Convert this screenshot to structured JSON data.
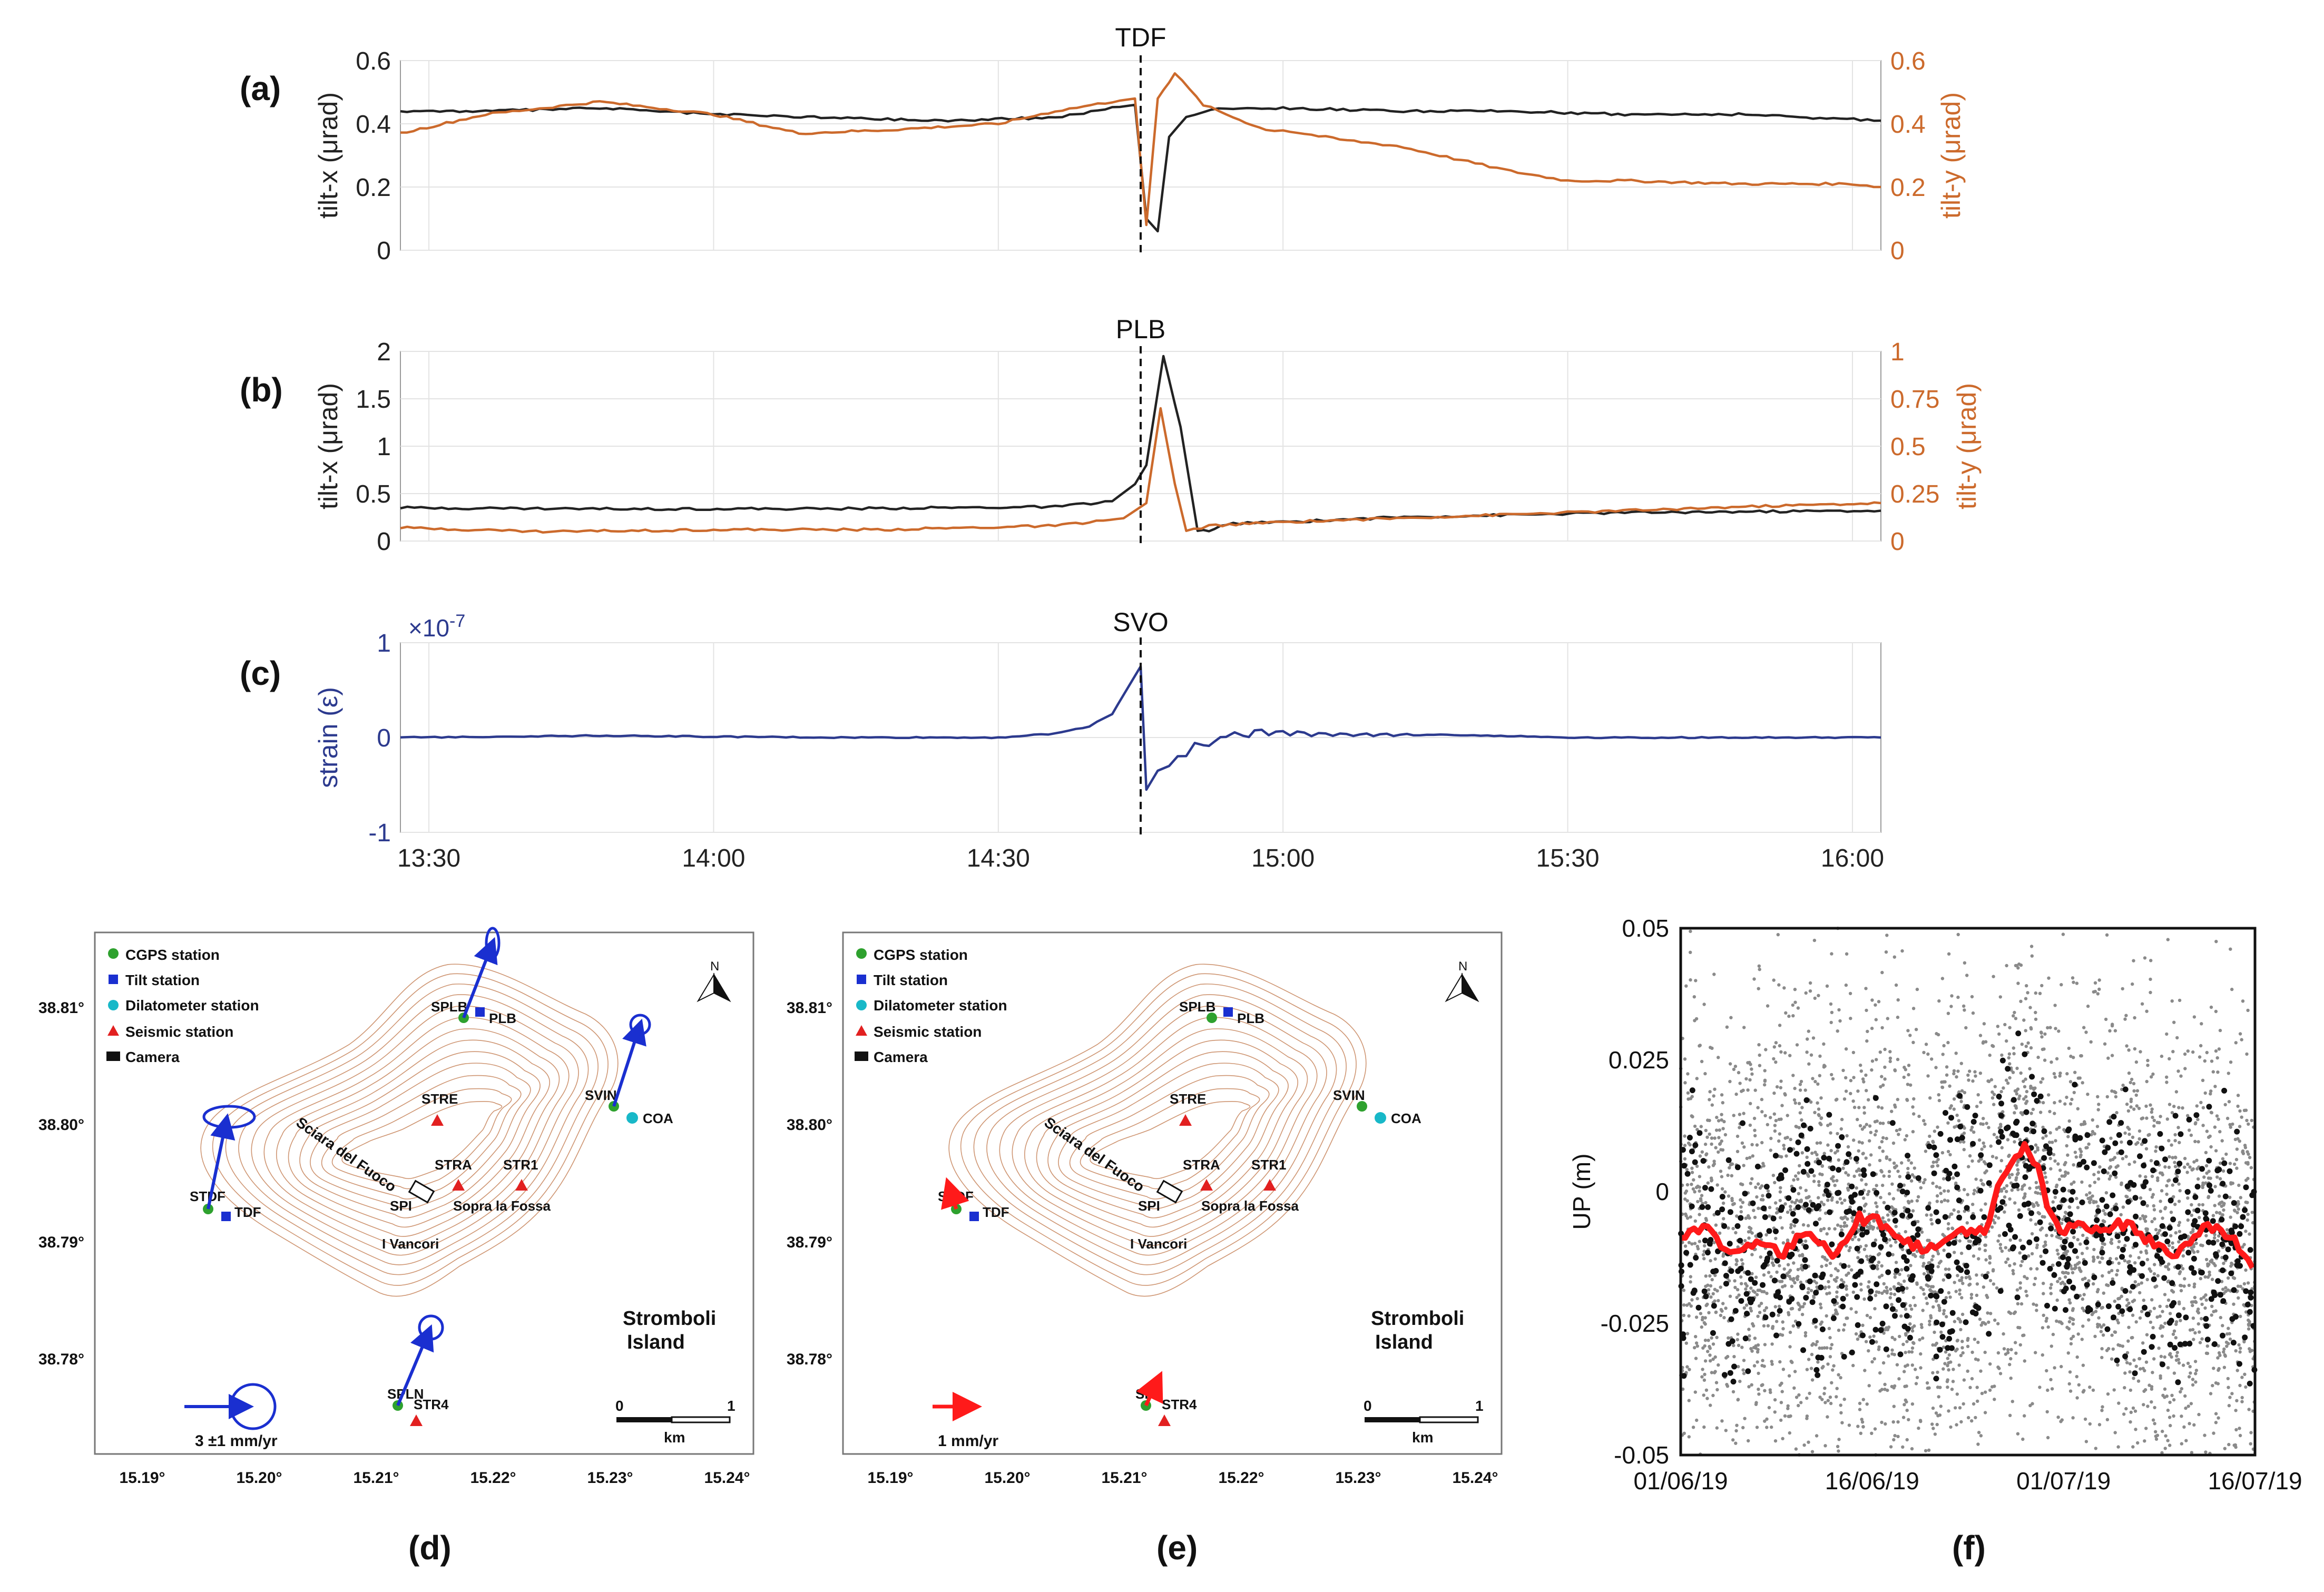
{
  "panels": {
    "a": "(a)",
    "b": "(b)",
    "c": "(c)",
    "d": "(d)",
    "e": "(e)",
    "f": "(f)"
  },
  "colors": {
    "black": "#222222",
    "orange": "#cc6a2c",
    "navy": "#2c3a8e",
    "grid": "#e3e3e3",
    "red": "#ff1a1a",
    "gray": "#8a8a8a",
    "contour": "#c98a63",
    "blue": "#1a2fd0",
    "green": "#2ea12e",
    "cyan": "#18b8c8"
  },
  "time_axis": {
    "range": [
      13.45,
      16.05
    ],
    "ticks": [
      {
        "v": 13.5,
        "label": "13:30"
      },
      {
        "v": 14.0,
        "label": "14:00"
      },
      {
        "v": 14.5,
        "label": "14:30"
      },
      {
        "v": 15.0,
        "label": "15:00"
      },
      {
        "v": 15.5,
        "label": "15:30"
      },
      {
        "v": 16.0,
        "label": "16:00"
      }
    ],
    "event": 14.75
  },
  "chart_data": [
    {
      "id": "a",
      "type": "line",
      "title": "TDF",
      "ylabel": "tilt-x (μrad)",
      "y2label": "tilt-y (μrad)",
      "ylim": [
        0,
        0.6
      ],
      "y2lim": [
        0,
        0.6
      ],
      "yticks": [
        "0",
        "0.2",
        "0.4",
        "0.6"
      ],
      "y2ticks": [
        "0",
        "0.2",
        "0.4",
        "0.6"
      ],
      "series": [
        {
          "name": "tilt-x",
          "axis": "left",
          "color": "#222222",
          "x": [
            13.45,
            13.6,
            13.8,
            14.0,
            14.2,
            14.4,
            14.6,
            14.7,
            14.74,
            14.76,
            14.78,
            14.8,
            14.83,
            14.86,
            14.9,
            15.0,
            15.2,
            15.4,
            15.6,
            15.8,
            16.05
          ],
          "y": [
            0.44,
            0.44,
            0.45,
            0.43,
            0.42,
            0.41,
            0.42,
            0.45,
            0.46,
            0.1,
            0.06,
            0.36,
            0.42,
            0.44,
            0.45,
            0.45,
            0.44,
            0.44,
            0.43,
            0.43,
            0.41
          ]
        },
        {
          "name": "tilt-y",
          "axis": "right",
          "color": "#cc6a2c",
          "x": [
            13.45,
            13.6,
            13.8,
            14.0,
            14.15,
            14.3,
            14.5,
            14.6,
            14.7,
            14.74,
            14.76,
            14.78,
            14.81,
            14.86,
            14.9,
            14.97,
            15.0,
            15.1,
            15.2,
            15.3,
            15.4,
            15.5,
            15.6,
            15.8,
            16.0,
            16.05
          ],
          "y": [
            0.37,
            0.43,
            0.47,
            0.43,
            0.37,
            0.38,
            0.4,
            0.44,
            0.47,
            0.48,
            0.08,
            0.48,
            0.56,
            0.46,
            0.43,
            0.38,
            0.38,
            0.35,
            0.33,
            0.29,
            0.25,
            0.22,
            0.22,
            0.21,
            0.21,
            0.2
          ]
        }
      ]
    },
    {
      "id": "b",
      "type": "line",
      "title": "PLB",
      "ylabel": "tilt-x (μrad)",
      "y2label": "tilt-y (μrad)",
      "ylim": [
        0,
        2
      ],
      "y2lim": [
        0,
        1
      ],
      "yticks": [
        "0",
        "0.5",
        "1",
        "1.5",
        "2"
      ],
      "y2ticks": [
        "0",
        "0.25",
        "0.5",
        "0.75",
        "1"
      ],
      "series": [
        {
          "name": "tilt-x",
          "axis": "left",
          "color": "#222222",
          "x": [
            13.45,
            13.8,
            14.2,
            14.6,
            14.7,
            14.74,
            14.76,
            14.79,
            14.82,
            14.85,
            14.88,
            14.9,
            15.0,
            15.2,
            15.6,
            16.05
          ],
          "y": [
            0.35,
            0.34,
            0.34,
            0.36,
            0.42,
            0.6,
            0.8,
            1.95,
            1.2,
            0.1,
            0.12,
            0.18,
            0.2,
            0.25,
            0.3,
            0.32
          ]
        },
        {
          "name": "tilt-y",
          "axis": "right",
          "color": "#cc6a2c",
          "x": [
            13.45,
            13.7,
            14.0,
            14.3,
            14.6,
            14.72,
            14.76,
            14.785,
            14.81,
            14.83,
            14.87,
            15.0,
            15.2,
            15.5,
            15.8,
            16.05
          ],
          "y": [
            0.07,
            0.05,
            0.06,
            0.06,
            0.08,
            0.12,
            0.2,
            0.7,
            0.3,
            0.05,
            0.08,
            0.1,
            0.12,
            0.15,
            0.18,
            0.2
          ]
        }
      ]
    },
    {
      "id": "c",
      "type": "line",
      "title": "SVO",
      "ylabel": "strain (ε)",
      "multiplier": "×10",
      "multiplier_exp": "-7",
      "ylim": [
        -1,
        1
      ],
      "yticks": [
        "-1",
        "0",
        "1"
      ],
      "series": [
        {
          "name": "strain",
          "axis": "left",
          "color": "#2c3a8e",
          "x": [
            13.45,
            13.8,
            14.2,
            14.5,
            14.6,
            14.66,
            14.7,
            14.73,
            14.75,
            14.76,
            14.78,
            14.8,
            14.83,
            14.86,
            14.88,
            14.9,
            14.93,
            14.95,
            15.0,
            15.1,
            15.3,
            15.5,
            15.7,
            15.9,
            16.05
          ],
          "y": [
            0.0,
            0.02,
            0.0,
            0.0,
            0.04,
            0.12,
            0.25,
            0.55,
            0.75,
            -0.55,
            -0.35,
            -0.3,
            -0.15,
            -0.05,
            -0.08,
            0.05,
            0.02,
            0.06,
            0.05,
            0.03,
            0.03,
            0.0,
            0.0,
            0.0,
            0.0
          ]
        }
      ]
    },
    {
      "id": "f",
      "type": "scatter",
      "ylabel": "UP (m)",
      "ylim": [
        -0.05,
        0.05
      ],
      "yticks": [
        "-0.05",
        "-0.025",
        "0",
        "0.025",
        "0.05"
      ],
      "xticks": [
        "01/06/19",
        "16/06/19",
        "01/07/19",
        "16/07/19"
      ],
      "xlim_days": [
        0,
        45
      ],
      "moving_average": {
        "color": "#ff1a1a",
        "x": [
          0,
          2,
          4,
          6,
          8,
          10,
          12,
          14,
          16,
          18,
          20,
          22,
          24,
          25,
          26,
          27,
          28,
          29,
          30,
          31,
          33,
          35,
          37,
          39,
          41,
          43,
          45
        ],
        "y": [
          -0.008,
          -0.007,
          -0.012,
          -0.009,
          -0.012,
          -0.007,
          -0.012,
          -0.005,
          -0.006,
          -0.01,
          -0.011,
          -0.007,
          -0.008,
          0.002,
          0.005,
          0.009,
          0.004,
          -0.005,
          -0.008,
          -0.006,
          -0.007,
          -0.006,
          -0.01,
          -0.012,
          -0.006,
          -0.008,
          -0.016
        ]
      }
    }
  ],
  "map_d": {
    "legend": [
      "CGPS station",
      "Tilt station",
      "Dilatometer station",
      "Seismic station",
      "Camera"
    ],
    "lat_ticks": [
      "38.81°",
      "38.80°",
      "38.79°",
      "38.78°"
    ],
    "lon_ticks": [
      "15.19°",
      "15.20°",
      "15.21°",
      "15.22°",
      "15.23°",
      "15.24°"
    ],
    "places": {
      "sciara": "Sciara del Fuoco",
      "vancori": "I Vancori",
      "fossa": "Sopra la Fossa",
      "spi": "SPI"
    },
    "stations": {
      "splb": "SPLB",
      "plb": "PLB",
      "svin": "SVIN",
      "coa": "COA",
      "stre": "STRE",
      "stra": "STRA",
      "str1": "STR1",
      "stdf": "STDF",
      "tdf": "TDF",
      "spln": "SPLN",
      "str4": "STR4"
    },
    "island": [
      "Stromboli",
      "Island"
    ],
    "scale": {
      "zero": "0",
      "one": "1",
      "unit": "km"
    },
    "vector_label": "3 ±1 mm/yr",
    "north": "N"
  },
  "map_e": {
    "legend": [
      "CGPS station",
      "Tilt station",
      "Dilatometer station",
      "Seismic station",
      "Camera"
    ],
    "lat_ticks": [
      "38.81°",
      "38.80°",
      "38.79°",
      "38.78°"
    ],
    "lon_ticks": [
      "15.19°",
      "15.20°",
      "15.21°",
      "15.22°",
      "15.23°",
      "15.24°"
    ],
    "places": {
      "sciara": "Sciara del Fuoco",
      "vancori": "I Vancori",
      "fossa": "Sopra la Fossa",
      "spi": "SPI"
    },
    "stations": {
      "splb": "SPLB",
      "plb": "PLB",
      "svin": "SVIN",
      "coa": "COA",
      "stre": "STRE",
      "stra": "STRA",
      "str1": "STR1",
      "stdf": "STDF",
      "tdf": "TDF",
      "spln": "SPL",
      "str4": "STR4"
    },
    "island": [
      "Stromboli",
      "Island"
    ],
    "scale": {
      "zero": "0",
      "one": "1",
      "unit": "km"
    },
    "vector_label": "1 mm/yr",
    "north": "N"
  }
}
